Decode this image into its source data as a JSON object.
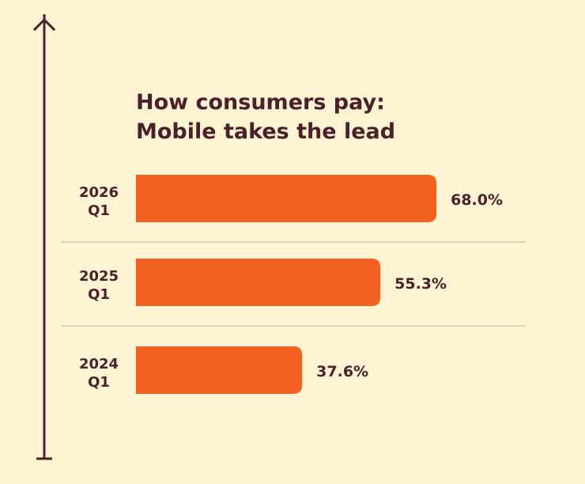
{
  "chart_data": {
    "type": "bar",
    "orientation": "horizontal",
    "title": "How consumers pay:",
    "subtitle": "Mobile takes the lead",
    "categories": [
      [
        "2026",
        "Q1"
      ],
      [
        "2025",
        "Q1"
      ],
      [
        "2024",
        "Q1"
      ]
    ],
    "values": [
      68.0,
      55.3,
      37.6
    ],
    "value_labels": [
      "68.0%",
      "55.3%",
      "37.6%"
    ],
    "xlabel": "",
    "ylabel": "",
    "xlim": [
      0,
      100
    ],
    "grid": false,
    "legend": "none",
    "axis_arrow": "up",
    "colors": {
      "background": "#fef3d2",
      "bar": "#f26122",
      "text": "#4a2128",
      "axis": "#4a2128",
      "divider": "#cfc8b4"
    }
  }
}
